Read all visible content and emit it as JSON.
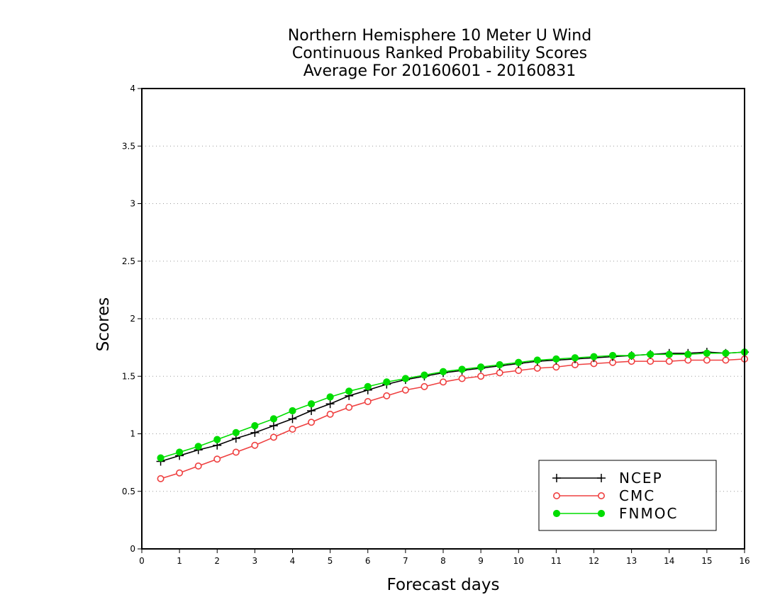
{
  "chart_data": {
    "type": "line",
    "title": [
      "Northern Hemisphere 10 Meter U Wind",
      "Continuous Ranked Probability Scores",
      "Average For 20160601 - 20160831"
    ],
    "xlabel": "Forecast days",
    "ylabel": "Scores",
    "xlim": [
      0,
      16
    ],
    "ylim": [
      0,
      4
    ],
    "xticks": [
      "0",
      "1",
      "2",
      "3",
      "4",
      "5",
      "6",
      "7",
      "8",
      "9",
      "10",
      "11",
      "12",
      "13",
      "14",
      "15",
      "16"
    ],
    "yticks": [
      "0",
      "0.5",
      "1",
      "1.5",
      "2",
      "2.5",
      "3",
      "3.5",
      "4"
    ],
    "grid": "horizontal dotted",
    "legend_position": "bottom-right",
    "x": [
      0.5,
      1,
      1.5,
      2,
      2.5,
      3,
      3.5,
      4,
      4.5,
      5,
      5.5,
      6,
      6.5,
      7,
      7.5,
      8,
      8.5,
      9,
      9.5,
      10,
      10.5,
      11,
      11.5,
      12,
      12.5,
      13,
      13.5,
      14,
      14.5,
      15,
      15.5,
      16
    ],
    "series": [
      {
        "name": "NCEP",
        "color": "#000000",
        "marker": "plus",
        "values": [
          0.76,
          0.81,
          0.86,
          0.9,
          0.96,
          1.01,
          1.07,
          1.13,
          1.2,
          1.26,
          1.33,
          1.38,
          1.43,
          1.47,
          1.5,
          1.53,
          1.55,
          1.57,
          1.59,
          1.61,
          1.63,
          1.64,
          1.65,
          1.66,
          1.67,
          1.68,
          1.69,
          1.7,
          1.7,
          1.71,
          1.7,
          1.71
        ]
      },
      {
        "name": "CMC",
        "color": "#ef4040",
        "marker": "open-circle",
        "values": [
          0.61,
          0.66,
          0.72,
          0.78,
          0.84,
          0.9,
          0.97,
          1.04,
          1.1,
          1.17,
          1.23,
          1.28,
          1.33,
          1.38,
          1.41,
          1.45,
          1.48,
          1.5,
          1.53,
          1.55,
          1.57,
          1.58,
          1.6,
          1.61,
          1.62,
          1.63,
          1.63,
          1.63,
          1.64,
          1.64,
          1.64,
          1.65
        ]
      },
      {
        "name": "FNMOC",
        "color": "#00dd00",
        "marker": "filled-circle",
        "values": [
          0.79,
          0.84,
          0.89,
          0.95,
          1.01,
          1.07,
          1.13,
          1.2,
          1.26,
          1.32,
          1.37,
          1.41,
          1.45,
          1.48,
          1.51,
          1.54,
          1.56,
          1.58,
          1.6,
          1.62,
          1.64,
          1.65,
          1.66,
          1.67,
          1.68,
          1.68,
          1.69,
          1.69,
          1.69,
          1.7,
          1.7,
          1.71
        ]
      }
    ]
  }
}
